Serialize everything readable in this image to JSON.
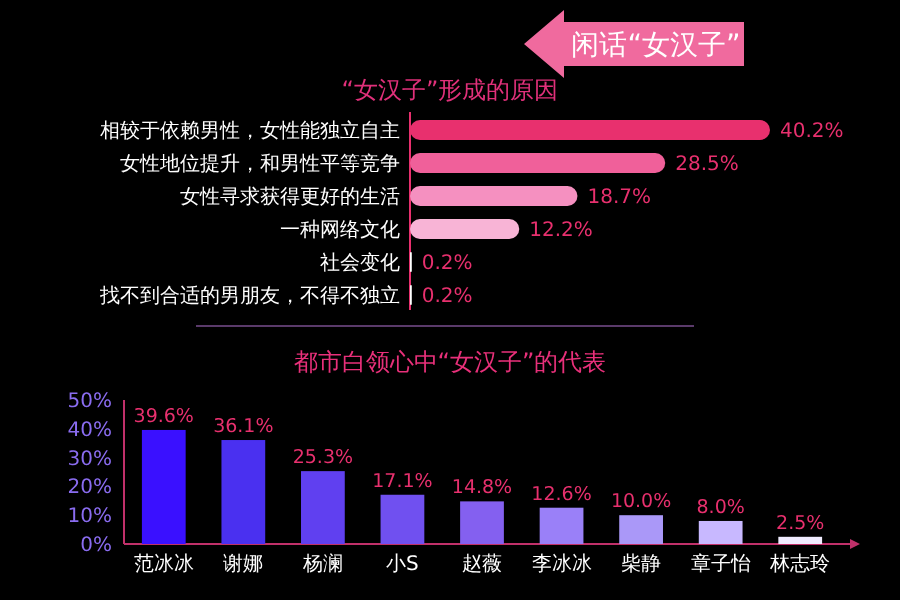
{
  "chart_data": [
    {
      "type": "bar",
      "orientation": "horizontal",
      "title": "“女汉子”形成的原因",
      "annotations": [
        "闲话“女汉子”"
      ],
      "categories": [
        "相较于依赖男性，女性能独立自主",
        "女性地位提升，和男性平等竞争",
        "女性寻求获得更好的生活",
        "一种网络文化",
        "社会变化",
        "找不到合适的男朋友，不得不独立"
      ],
      "values": [
        40.2,
        28.5,
        18.7,
        12.2,
        0.2,
        0.2
      ],
      "value_labels": [
        "40.2%",
        "28.5%",
        "18.7%",
        "12.2%",
        "0.2%",
        "0.2%"
      ],
      "colors": [
        "#e8306e",
        "#f0609a",
        "#f590c0",
        "#f8b4d6",
        "#ffffff",
        "#ffffff"
      ]
    },
    {
      "type": "bar",
      "title": "都市白领心中“女汉子”的代表",
      "categories": [
        "范冰冰",
        "谢娜",
        "杨澜",
        "小S",
        "赵薇",
        "李冰冰",
        "柴静",
        "章子怡",
        "林志玲"
      ],
      "values": [
        39.6,
        36.1,
        25.3,
        17.1,
        14.8,
        12.6,
        10.0,
        8.0,
        2.5
      ],
      "value_labels": [
        "39.6%",
        "36.1%",
        "25.3%",
        "17.1%",
        "14.8%",
        "12.6%",
        "10.0%",
        "8.0%",
        "2.5%"
      ],
      "colors": [
        "#3a10ff",
        "#4a30f0",
        "#6040f0",
        "#7050f0",
        "#8460f0",
        "#9a80f8",
        "#aa98f8",
        "#c8b8ff",
        "#f0ecff"
      ],
      "ylim": [
        0,
        50
      ],
      "yticks": [
        {
          "value": 0,
          "label": "0%"
        },
        {
          "value": 10,
          "label": "10%"
        },
        {
          "value": 20,
          "label": "20%"
        },
        {
          "value": 30,
          "label": "30%"
        },
        {
          "value": 40,
          "label": "40%"
        },
        {
          "value": 50,
          "label": "50%"
        }
      ]
    }
  ]
}
